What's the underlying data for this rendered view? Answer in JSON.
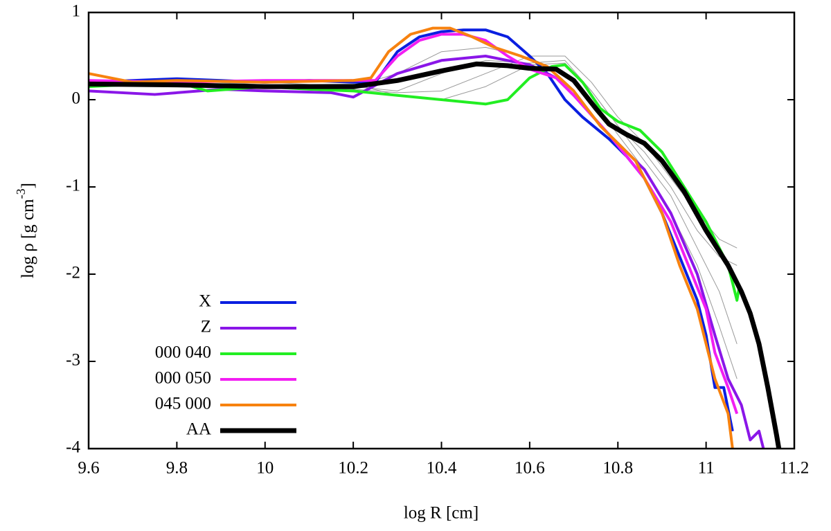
{
  "chart_data": {
    "type": "line",
    "xlabel": "log R [cm]",
    "ylabel": {
      "text": "log ρ [g cm",
      "sup": "-3",
      "end": "]"
    },
    "xlim": [
      9.6,
      11.2
    ],
    "xticks": [
      9.6,
      9.8,
      10,
      10.2,
      10.4,
      10.6,
      10.8,
      11,
      11.2
    ],
    "ylim": [
      -4,
      1
    ],
    "yticks": [
      -4,
      -3,
      -2,
      -1,
      0,
      1
    ],
    "legend": "bottom-left",
    "series": [
      {
        "color": "#999999",
        "width": 1,
        "x": [
          9.6,
          9.8,
          10.0,
          10.2,
          10.3,
          10.4,
          10.5,
          10.6,
          10.68,
          10.74,
          10.8,
          10.86,
          10.92,
          10.98,
          11.03,
          11.07
        ],
        "values": [
          0.2,
          0.18,
          0.17,
          0.15,
          0.1,
          0.3,
          0.45,
          0.42,
          0.45,
          0.1,
          -0.3,
          -0.6,
          -1.0,
          -1.5,
          -1.8,
          -1.9
        ]
      },
      {
        "color": "#999999",
        "width": 1,
        "x": [
          9.6,
          9.8,
          10.0,
          10.2,
          10.3,
          10.4,
          10.5,
          10.6,
          10.68,
          10.74,
          10.8,
          10.86,
          10.92,
          10.98,
          11.03,
          11.07
        ],
        "values": [
          0.15,
          0.2,
          0.15,
          0.12,
          0.08,
          0.1,
          0.3,
          0.5,
          0.5,
          0.2,
          -0.2,
          -0.5,
          -0.9,
          -1.3,
          -1.6,
          -1.7
        ]
      },
      {
        "color": "#999999",
        "width": 1,
        "x": [
          9.6,
          9.8,
          10.0,
          10.2,
          10.3,
          10.4,
          10.5,
          10.6,
          10.68,
          10.74,
          10.8,
          10.86,
          10.92,
          10.98,
          11.03,
          11.07
        ],
        "values": [
          0.22,
          0.15,
          0.2,
          0.15,
          0.3,
          0.55,
          0.6,
          0.48,
          0.3,
          0.0,
          -0.4,
          -0.8,
          -1.3,
          -1.9,
          -2.6,
          -3.2
        ]
      },
      {
        "color": "#999999",
        "width": 1,
        "x": [
          9.6,
          9.8,
          10.0,
          10.2,
          10.3,
          10.4,
          10.5,
          10.6,
          10.68,
          10.74,
          10.8,
          10.86,
          10.92,
          10.98,
          11.03,
          11.07
        ],
        "values": [
          0.18,
          0.22,
          0.17,
          0.18,
          0.05,
          0.0,
          0.15,
          0.4,
          0.42,
          0.1,
          -0.3,
          -0.7,
          -1.1,
          -1.7,
          -2.2,
          -2.8
        ]
      },
      {
        "name": "X",
        "color": "#0a1fe0",
        "width": 4,
        "x": [
          9.6,
          9.7,
          9.8,
          9.9,
          10.0,
          10.1,
          10.2,
          10.25,
          10.3,
          10.35,
          10.4,
          10.45,
          10.5,
          10.55,
          10.6,
          10.64,
          10.68,
          10.72,
          10.78,
          10.82,
          10.86,
          10.9,
          10.94,
          10.98,
          11.0,
          11.02,
          11.04,
          11.06
        ],
        "values": [
          0.2,
          0.22,
          0.24,
          0.22,
          0.2,
          0.22,
          0.2,
          0.2,
          0.55,
          0.72,
          0.78,
          0.8,
          0.8,
          0.72,
          0.5,
          0.3,
          0.0,
          -0.2,
          -0.45,
          -0.65,
          -0.9,
          -1.3,
          -1.8,
          -2.3,
          -2.7,
          -3.3,
          -3.3,
          -3.8
        ]
      },
      {
        "name": "Z",
        "color": "#8a16e8",
        "width": 4,
        "x": [
          9.6,
          9.75,
          9.9,
          10.0,
          10.15,
          10.2,
          10.3,
          10.4,
          10.5,
          10.6,
          10.66,
          10.7,
          10.78,
          10.86,
          10.92,
          10.98,
          11.02,
          11.05,
          11.08,
          11.1,
          11.12,
          11.13
        ],
        "values": [
          0.1,
          0.06,
          0.12,
          0.1,
          0.08,
          0.03,
          0.3,
          0.45,
          0.5,
          0.4,
          0.25,
          0.05,
          -0.4,
          -0.8,
          -1.3,
          -2.0,
          -2.7,
          -3.2,
          -3.5,
          -3.9,
          -3.8,
          -4
        ]
      },
      {
        "name": "000 040",
        "color": "#22ee22",
        "width": 4,
        "x": [
          9.6,
          9.8,
          9.87,
          10.0,
          10.1,
          10.2,
          10.3,
          10.4,
          10.5,
          10.55,
          10.6,
          10.65,
          10.68,
          10.72,
          10.76,
          10.8,
          10.85,
          10.9,
          10.95,
          11.0,
          11.03,
          11.05,
          11.07,
          11.075
        ],
        "values": [
          0.15,
          0.2,
          0.1,
          0.15,
          0.12,
          0.1,
          0.05,
          0.0,
          -0.05,
          0.0,
          0.25,
          0.38,
          0.4,
          0.2,
          -0.1,
          -0.25,
          -0.35,
          -0.6,
          -1.0,
          -1.4,
          -1.7,
          -1.9,
          -2.3,
          -2.15
        ]
      },
      {
        "name": "000 050",
        "color": "#f21ef2",
        "width": 4,
        "x": [
          9.6,
          9.8,
          10.0,
          10.25,
          10.3,
          10.35,
          10.4,
          10.45,
          10.5,
          10.55,
          10.6,
          10.66,
          10.7,
          10.78,
          10.86,
          10.92,
          10.96,
          11.0,
          11.02,
          11.05,
          11.07
        ],
        "values": [
          0.22,
          0.2,
          0.22,
          0.22,
          0.5,
          0.68,
          0.75,
          0.75,
          0.68,
          0.5,
          0.35,
          0.25,
          0.05,
          -0.4,
          -0.9,
          -1.4,
          -1.9,
          -2.4,
          -2.9,
          -3.3,
          -3.6
        ]
      },
      {
        "name": "045 000",
        "color": "#f7820f",
        "width": 4,
        "x": [
          9.6,
          9.7,
          9.8,
          10.0,
          10.2,
          10.24,
          10.28,
          10.33,
          10.38,
          10.42,
          10.47,
          10.52,
          10.58,
          10.64,
          10.7,
          10.76,
          10.84,
          10.9,
          10.94,
          10.98,
          11.0,
          11.02,
          11.05,
          11.06
        ],
        "values": [
          0.3,
          0.2,
          0.22,
          0.2,
          0.22,
          0.25,
          0.55,
          0.75,
          0.82,
          0.82,
          0.72,
          0.6,
          0.5,
          0.38,
          0.1,
          -0.3,
          -0.7,
          -1.3,
          -1.9,
          -2.4,
          -2.8,
          -3.2,
          -3.6,
          -4
        ]
      },
      {
        "name": "AA",
        "color": "#000000",
        "width": 7,
        "x": [
          9.6,
          9.8,
          10.0,
          10.2,
          10.3,
          10.4,
          10.48,
          10.55,
          10.6,
          10.66,
          10.7,
          10.75,
          10.78,
          10.82,
          10.86,
          10.9,
          10.95,
          11.0,
          11.05,
          11.08,
          11.1,
          11.12,
          11.14,
          11.16,
          11.165
        ],
        "values": [
          0.18,
          0.17,
          0.15,
          0.15,
          0.22,
          0.33,
          0.41,
          0.39,
          0.36,
          0.35,
          0.22,
          -0.1,
          -0.28,
          -0.4,
          -0.5,
          -0.7,
          -1.05,
          -1.5,
          -1.9,
          -2.2,
          -2.45,
          -2.8,
          -3.3,
          -3.85,
          -4
        ]
      }
    ]
  }
}
